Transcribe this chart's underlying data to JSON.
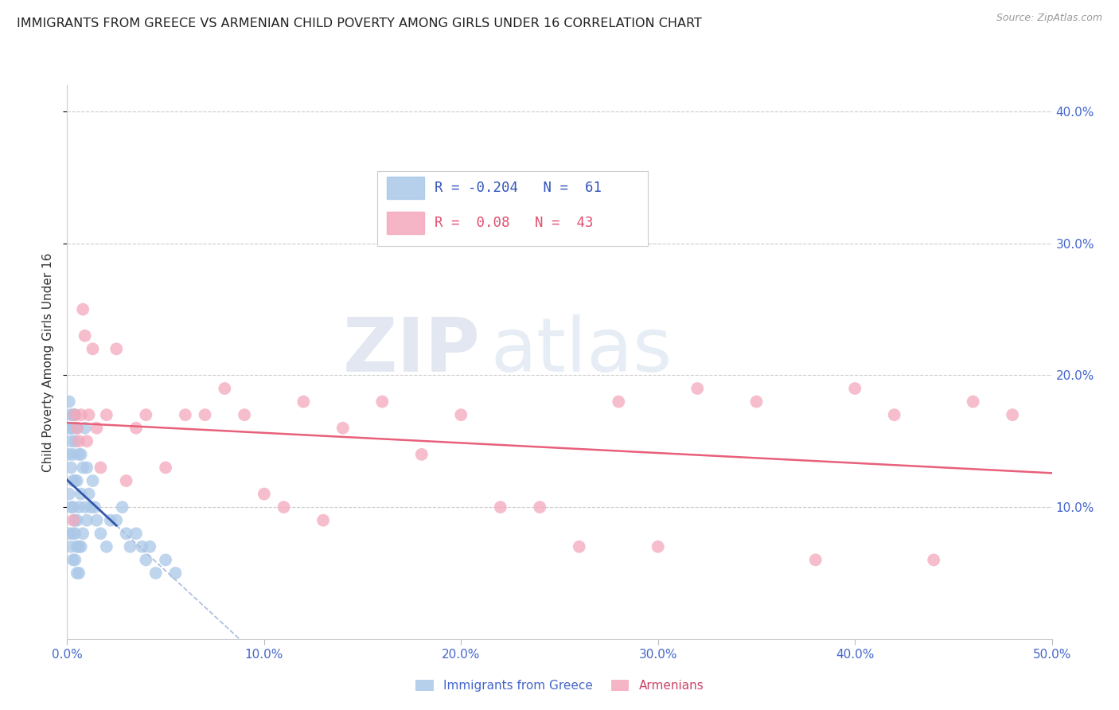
{
  "title": "IMMIGRANTS FROM GREECE VS ARMENIAN CHILD POVERTY AMONG GIRLS UNDER 16 CORRELATION CHART",
  "source": "Source: ZipAtlas.com",
  "ylabel": "Child Poverty Among Girls Under 16",
  "xlim": [
    0.0,
    0.5
  ],
  "ylim": [
    0.0,
    0.42
  ],
  "xticks": [
    0.0,
    0.1,
    0.2,
    0.3,
    0.4,
    0.5
  ],
  "yticks": [
    0.1,
    0.2,
    0.3,
    0.4
  ],
  "xtick_labels": [
    "0.0%",
    "10.0%",
    "20.0%",
    "30.0%",
    "40.0%",
    "50.0%"
  ],
  "right_ytick_labels": [
    "10.0%",
    "20.0%",
    "30.0%",
    "40.0%"
  ],
  "greece_R": -0.204,
  "greece_N": 61,
  "armenia_R": 0.08,
  "armenia_N": 43,
  "greece_color": "#aac8e8",
  "armenia_color": "#f4a8bc",
  "legend_greece": "Immigrants from Greece",
  "legend_armenia": "Armenians",
  "watermark_zip": "ZIP",
  "watermark_atlas": "atlas",
  "greece_x": [
    0.001,
    0.001,
    0.001,
    0.001,
    0.001,
    0.002,
    0.002,
    0.002,
    0.002,
    0.002,
    0.002,
    0.003,
    0.003,
    0.003,
    0.003,
    0.003,
    0.003,
    0.003,
    0.004,
    0.004,
    0.004,
    0.004,
    0.004,
    0.004,
    0.005,
    0.005,
    0.005,
    0.005,
    0.005,
    0.006,
    0.006,
    0.006,
    0.006,
    0.007,
    0.007,
    0.007,
    0.008,
    0.008,
    0.009,
    0.009,
    0.01,
    0.01,
    0.011,
    0.012,
    0.013,
    0.014,
    0.015,
    0.017,
    0.02,
    0.022,
    0.025,
    0.028,
    0.03,
    0.032,
    0.035,
    0.038,
    0.04,
    0.042,
    0.045,
    0.05,
    0.055
  ],
  "greece_y": [
    0.08,
    0.11,
    0.14,
    0.16,
    0.18,
    0.07,
    0.1,
    0.13,
    0.15,
    0.16,
    0.17,
    0.06,
    0.08,
    0.1,
    0.12,
    0.14,
    0.16,
    0.17,
    0.06,
    0.08,
    0.09,
    0.12,
    0.15,
    0.17,
    0.05,
    0.07,
    0.09,
    0.12,
    0.16,
    0.05,
    0.07,
    0.1,
    0.14,
    0.07,
    0.11,
    0.14,
    0.08,
    0.13,
    0.1,
    0.16,
    0.09,
    0.13,
    0.11,
    0.1,
    0.12,
    0.1,
    0.09,
    0.08,
    0.07,
    0.09,
    0.09,
    0.1,
    0.08,
    0.07,
    0.08,
    0.07,
    0.06,
    0.07,
    0.05,
    0.06,
    0.05
  ],
  "armenia_x": [
    0.003,
    0.004,
    0.005,
    0.006,
    0.007,
    0.008,
    0.009,
    0.01,
    0.011,
    0.013,
    0.015,
    0.017,
    0.02,
    0.025,
    0.03,
    0.035,
    0.04,
    0.05,
    0.06,
    0.07,
    0.08,
    0.09,
    0.1,
    0.11,
    0.12,
    0.13,
    0.14,
    0.16,
    0.18,
    0.2,
    0.22,
    0.24,
    0.26,
    0.28,
    0.3,
    0.32,
    0.35,
    0.38,
    0.4,
    0.42,
    0.44,
    0.46,
    0.48
  ],
  "armenia_y": [
    0.09,
    0.17,
    0.16,
    0.15,
    0.17,
    0.25,
    0.23,
    0.15,
    0.17,
    0.22,
    0.16,
    0.13,
    0.17,
    0.22,
    0.12,
    0.16,
    0.17,
    0.13,
    0.17,
    0.17,
    0.19,
    0.17,
    0.11,
    0.1,
    0.18,
    0.09,
    0.16,
    0.18,
    0.14,
    0.17,
    0.1,
    0.1,
    0.07,
    0.18,
    0.07,
    0.19,
    0.18,
    0.06,
    0.19,
    0.17,
    0.06,
    0.18,
    0.17
  ]
}
